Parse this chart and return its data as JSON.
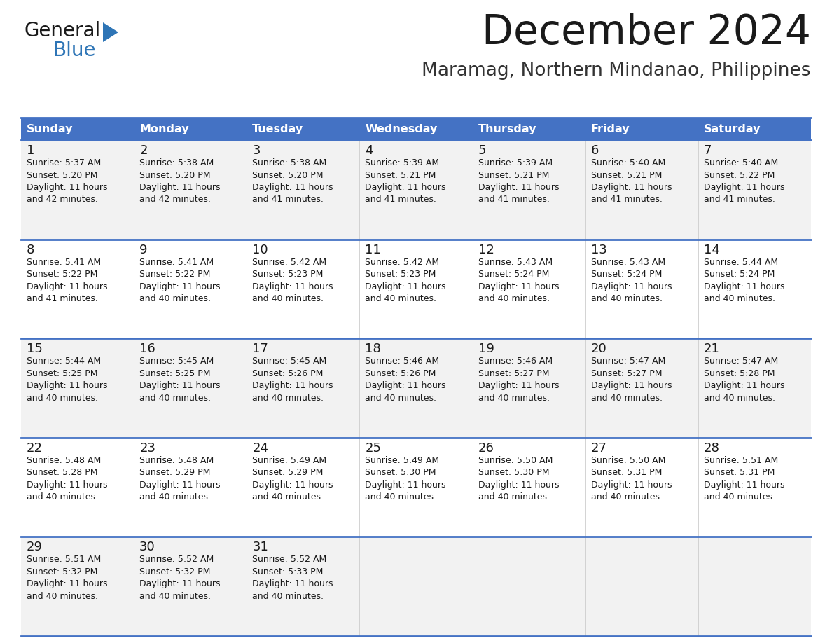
{
  "title": "December 2024",
  "subtitle": "Maramag, Northern Mindanao, Philippines",
  "header_bg_color": "#4472C4",
  "header_text_color": "#FFFFFF",
  "cell_bg_color_odd": "#F2F2F2",
  "cell_bg_color_even": "#FFFFFF",
  "day_headers": [
    "Sunday",
    "Monday",
    "Tuesday",
    "Wednesday",
    "Thursday",
    "Friday",
    "Saturday"
  ],
  "logo_text1": "General",
  "logo_text2": "Blue",
  "logo_color1": "#1a1a1a",
  "logo_color2": "#2E75B6",
  "title_color": "#1a1a1a",
  "subtitle_color": "#333333",
  "border_color": "#4472C4",
  "divider_color": "#4472C4",
  "calendar": [
    [
      {
        "day": 1,
        "sunrise": "5:37 AM",
        "sunset": "5:20 PM",
        "daylight": "11 hours and 42 minutes."
      },
      {
        "day": 2,
        "sunrise": "5:38 AM",
        "sunset": "5:20 PM",
        "daylight": "11 hours and 42 minutes."
      },
      {
        "day": 3,
        "sunrise": "5:38 AM",
        "sunset": "5:20 PM",
        "daylight": "11 hours and 41 minutes."
      },
      {
        "day": 4,
        "sunrise": "5:39 AM",
        "sunset": "5:21 PM",
        "daylight": "11 hours and 41 minutes."
      },
      {
        "day": 5,
        "sunrise": "5:39 AM",
        "sunset": "5:21 PM",
        "daylight": "11 hours and 41 minutes."
      },
      {
        "day": 6,
        "sunrise": "5:40 AM",
        "sunset": "5:21 PM",
        "daylight": "11 hours and 41 minutes."
      },
      {
        "day": 7,
        "sunrise": "5:40 AM",
        "sunset": "5:22 PM",
        "daylight": "11 hours and 41 minutes."
      }
    ],
    [
      {
        "day": 8,
        "sunrise": "5:41 AM",
        "sunset": "5:22 PM",
        "daylight": "11 hours and 41 minutes."
      },
      {
        "day": 9,
        "sunrise": "5:41 AM",
        "sunset": "5:22 PM",
        "daylight": "11 hours and 40 minutes."
      },
      {
        "day": 10,
        "sunrise": "5:42 AM",
        "sunset": "5:23 PM",
        "daylight": "11 hours and 40 minutes."
      },
      {
        "day": 11,
        "sunrise": "5:42 AM",
        "sunset": "5:23 PM",
        "daylight": "11 hours and 40 minutes."
      },
      {
        "day": 12,
        "sunrise": "5:43 AM",
        "sunset": "5:24 PM",
        "daylight": "11 hours and 40 minutes."
      },
      {
        "day": 13,
        "sunrise": "5:43 AM",
        "sunset": "5:24 PM",
        "daylight": "11 hours and 40 minutes."
      },
      {
        "day": 14,
        "sunrise": "5:44 AM",
        "sunset": "5:24 PM",
        "daylight": "11 hours and 40 minutes."
      }
    ],
    [
      {
        "day": 15,
        "sunrise": "5:44 AM",
        "sunset": "5:25 PM",
        "daylight": "11 hours and 40 minutes."
      },
      {
        "day": 16,
        "sunrise": "5:45 AM",
        "sunset": "5:25 PM",
        "daylight": "11 hours and 40 minutes."
      },
      {
        "day": 17,
        "sunrise": "5:45 AM",
        "sunset": "5:26 PM",
        "daylight": "11 hours and 40 minutes."
      },
      {
        "day": 18,
        "sunrise": "5:46 AM",
        "sunset": "5:26 PM",
        "daylight": "11 hours and 40 minutes."
      },
      {
        "day": 19,
        "sunrise": "5:46 AM",
        "sunset": "5:27 PM",
        "daylight": "11 hours and 40 minutes."
      },
      {
        "day": 20,
        "sunrise": "5:47 AM",
        "sunset": "5:27 PM",
        "daylight": "11 hours and 40 minutes."
      },
      {
        "day": 21,
        "sunrise": "5:47 AM",
        "sunset": "5:28 PM",
        "daylight": "11 hours and 40 minutes."
      }
    ],
    [
      {
        "day": 22,
        "sunrise": "5:48 AM",
        "sunset": "5:28 PM",
        "daylight": "11 hours and 40 minutes."
      },
      {
        "day": 23,
        "sunrise": "5:48 AM",
        "sunset": "5:29 PM",
        "daylight": "11 hours and 40 minutes."
      },
      {
        "day": 24,
        "sunrise": "5:49 AM",
        "sunset": "5:29 PM",
        "daylight": "11 hours and 40 minutes."
      },
      {
        "day": 25,
        "sunrise": "5:49 AM",
        "sunset": "5:30 PM",
        "daylight": "11 hours and 40 minutes."
      },
      {
        "day": 26,
        "sunrise": "5:50 AM",
        "sunset": "5:30 PM",
        "daylight": "11 hours and 40 minutes."
      },
      {
        "day": 27,
        "sunrise": "5:50 AM",
        "sunset": "5:31 PM",
        "daylight": "11 hours and 40 minutes."
      },
      {
        "day": 28,
        "sunrise": "5:51 AM",
        "sunset": "5:31 PM",
        "daylight": "11 hours and 40 minutes."
      }
    ],
    [
      {
        "day": 29,
        "sunrise": "5:51 AM",
        "sunset": "5:32 PM",
        "daylight": "11 hours and 40 minutes."
      },
      {
        "day": 30,
        "sunrise": "5:52 AM",
        "sunset": "5:32 PM",
        "daylight": "11 hours and 40 minutes."
      },
      {
        "day": 31,
        "sunrise": "5:52 AM",
        "sunset": "5:33 PM",
        "daylight": "11 hours and 40 minutes."
      },
      null,
      null,
      null,
      null
    ]
  ]
}
